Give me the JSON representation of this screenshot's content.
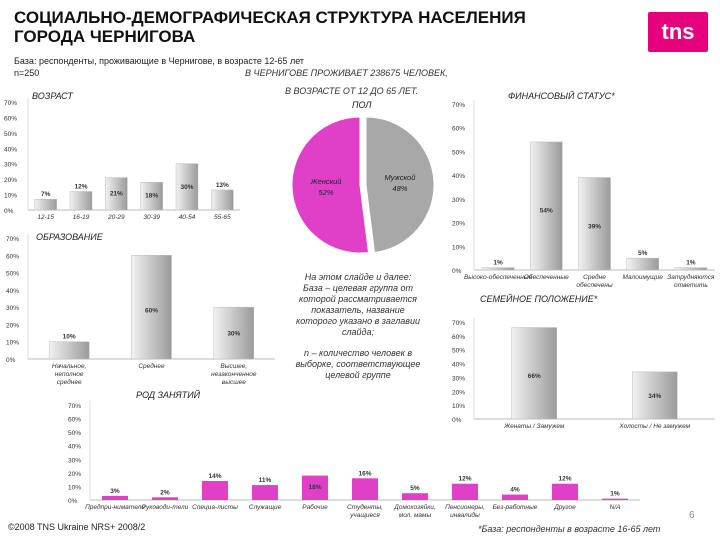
{
  "header": {
    "title_line1": "СОЦИАЛЬНО-ДЕМОГРАФИЧЕСКАЯ СТРУКТУРА НАСЕЛЕНИЯ",
    "title_line2": "ГОРОДА ЧЕРНИГОВА",
    "base": "База: респонденты, проживающие в Чернигове, в возрасте 12-65 лет",
    "n": "n=250",
    "population_line1": "В ЧЕРНИГОВЕ  ПРОЖИВАЕТ 238675 ЧЕЛОВЕК,",
    "population_line2": "В ВОЗРАСТЕ ОТ 12 ДО 65 ЛЕТ.",
    "logo_text": "tns"
  },
  "note": {
    "line1": "На этом слайде и далее:",
    "line2": "База – целевая группа от",
    "line3": "которой рассматривается",
    "line4": "показатель, название",
    "line5": "которого указано в заглавии",
    "line6": "слайда;",
    "line7": "n – количество человек в",
    "line8": "выборке, соответствующее",
    "line9": "целевой группе"
  },
  "footer": {
    "copyright": "©2008 TNS Ukraine  NRS+ 2008/2",
    "page": "6",
    "footnote": "*База: респонденты в возрасте 16-65 лет"
  },
  "colors": {
    "pink": "#e040c8",
    "grey": "#a8a8a8",
    "accent": "#e6007e"
  },
  "chart_data": [
    {
      "id": "age",
      "type": "bar",
      "title": "ВОЗРАСТ",
      "categories": [
        "12-15",
        "16-19",
        "20-29",
        "30-39",
        "40-54",
        "55-65"
      ],
      "values": [
        7,
        12,
        21,
        18,
        30,
        13
      ],
      "labels": [
        "7%",
        "12%",
        "21%",
        "18%",
        "30%",
        "13%"
      ],
      "ylim": [
        0,
        70
      ],
      "yticks": [
        "0%",
        "10%",
        "20%",
        "30%",
        "40%",
        "50%",
        "60%",
        "70%"
      ],
      "color": "grey"
    },
    {
      "id": "sex",
      "type": "pie",
      "title": "ПОЛ",
      "slices": [
        {
          "name": "Женский",
          "value": 52,
          "label": "52%",
          "color": "pink"
        },
        {
          "name": "Мужской",
          "value": 48,
          "label": "48%",
          "color": "grey"
        }
      ]
    },
    {
      "id": "finance",
      "type": "bar",
      "title": "ФИНАНСОВЫЙ СТАТУС*",
      "categories": [
        "Высоко-обеспеченные",
        "Обеспеченные",
        "Средне обеспечены",
        "Малоимущие",
        "Затрудняются ответить"
      ],
      "values": [
        1,
        54,
        39,
        5,
        1
      ],
      "labels": [
        "1%",
        "54%",
        "39%",
        "5%",
        "1%"
      ],
      "ylim": [
        0,
        70
      ],
      "yticks": [
        "0%",
        "10%",
        "20%",
        "30%",
        "40%",
        "50%",
        "60%",
        "70%"
      ],
      "color": "grey"
    },
    {
      "id": "education",
      "type": "bar",
      "title": "ОБРАЗОВАНИЕ",
      "categories": [
        "Начальное, неполное среднее",
        "Среднее",
        "Высшее, незаконченное высшее"
      ],
      "values": [
        10,
        60,
        30
      ],
      "labels": [
        "10%",
        "60%",
        "30%"
      ],
      "ylim": [
        0,
        70
      ],
      "yticks": [
        "0%",
        "10%",
        "20%",
        "30%",
        "40%",
        "50%",
        "60%",
        "70%"
      ],
      "color": "grey"
    },
    {
      "id": "family",
      "type": "bar",
      "title": "СЕМЕЙНОЕ ПОЛОЖЕНИЕ*",
      "categories": [
        "Женаты / Замужем",
        "Холосты / Не замужем"
      ],
      "values": [
        66,
        34
      ],
      "labels": [
        "66%",
        "34%"
      ],
      "ylim": [
        0,
        70
      ],
      "yticks": [
        "0%",
        "10%",
        "20%",
        "30%",
        "40%",
        "50%",
        "60%",
        "70%"
      ],
      "color": "grey"
    },
    {
      "id": "occupation",
      "type": "bar",
      "title": "РОД ЗАНЯТИЙ",
      "categories": [
        "Предпри-ниматели",
        "Руководи-тели",
        "Специа-листы",
        "Служащие",
        "Рабочие",
        "Студенты, учащиеся",
        "Домохозяйки, мол. мамы",
        "Пенсионеры, инвалиды",
        "Без-работные",
        "Другое",
        "N/A"
      ],
      "values": [
        3,
        2,
        14,
        11,
        18,
        16,
        5,
        12,
        4,
        12,
        1
      ],
      "labels": [
        "3%",
        "2%",
        "14%",
        "11%",
        "18%",
        "16%",
        "5%",
        "12%",
        "4%",
        "12%",
        "1%"
      ],
      "ylim": [
        0,
        70
      ],
      "yticks": [
        "0%",
        "10%",
        "20%",
        "30%",
        "40%",
        "50%",
        "60%",
        "70%"
      ],
      "color": "pink"
    }
  ]
}
